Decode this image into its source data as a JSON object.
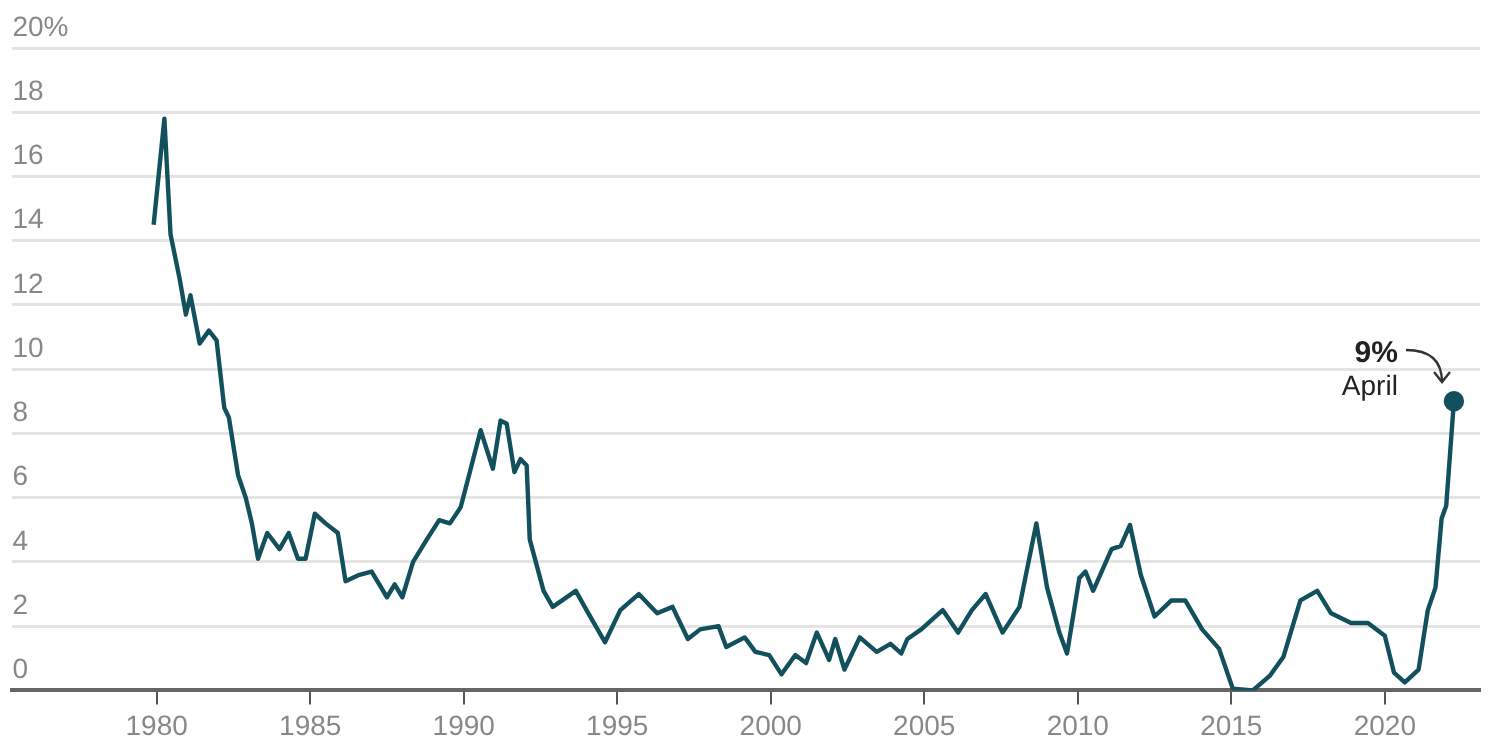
{
  "chart_data": {
    "type": "line",
    "x": [
      1979.9,
      1980.25,
      1980.45,
      1980.75,
      1980.95,
      1981.1,
      1981.4,
      1981.7,
      1981.95,
      1982.2,
      1982.35,
      1982.65,
      1982.9,
      1983.1,
      1983.3,
      1983.6,
      1984.0,
      1984.3,
      1984.6,
      1984.85,
      1985.15,
      1985.5,
      1985.9,
      1986.15,
      1986.6,
      1987.0,
      1987.5,
      1987.75,
      1988.0,
      1988.35,
      1988.8,
      1989.2,
      1989.55,
      1989.9,
      1990.2,
      1990.55,
      1990.95,
      1991.2,
      1991.4,
      1991.65,
      1991.85,
      1992.05,
      1992.15,
      1992.6,
      1992.9,
      1993.65,
      1994.0,
      1994.6,
      1995.1,
      1995.7,
      1996.3,
      1996.8,
      1997.3,
      1997.7,
      1998.3,
      1998.55,
      1999.15,
      1999.5,
      1999.95,
      2000.35,
      2000.8,
      2001.15,
      2001.5,
      2001.9,
      2002.1,
      2002.4,
      2002.9,
      2003.45,
      2003.9,
      2004.25,
      2004.45,
      2004.9,
      2005.6,
      2006.1,
      2006.55,
      2007.0,
      2007.55,
      2008.1,
      2008.65,
      2009.0,
      2009.4,
      2009.65,
      2010.05,
      2010.25,
      2010.5,
      2011.1,
      2011.4,
      2011.7,
      2012.05,
      2012.5,
      2013.05,
      2013.5,
      2014.05,
      2014.6,
      2015.05,
      2015.7,
      2016.25,
      2016.7,
      2017.25,
      2017.8,
      2018.25,
      2018.9,
      2019.45,
      2020.0,
      2020.3,
      2020.65,
      2021.1,
      2021.4,
      2021.65,
      2021.85,
      2022.0,
      2022.25
    ],
    "series": [
      {
        "color": "#12505e",
        "values": [
          14.5,
          17.8,
          14.2,
          12.8,
          11.7,
          12.3,
          10.8,
          11.2,
          10.9,
          8.8,
          8.5,
          6.7,
          6.0,
          5.2,
          4.1,
          4.9,
          4.4,
          4.9,
          4.1,
          4.1,
          5.5,
          5.2,
          4.9,
          3.4,
          3.6,
          3.7,
          2.9,
          3.3,
          2.9,
          4.0,
          4.7,
          5.3,
          5.2,
          5.7,
          6.8,
          8.1,
          6.9,
          8.4,
          8.3,
          6.8,
          7.2,
          7.0,
          4.7,
          3.1,
          2.6,
          3.1,
          2.5,
          1.5,
          2.5,
          3.0,
          2.4,
          2.6,
          1.6,
          1.9,
          2.0,
          1.35,
          1.65,
          1.2,
          1.1,
          0.5,
          1.1,
          0.85,
          1.8,
          0.95,
          1.6,
          0.65,
          1.65,
          1.2,
          1.45,
          1.15,
          1.6,
          1.9,
          2.5,
          1.8,
          2.5,
          3.0,
          1.8,
          2.6,
          5.2,
          3.2,
          1.8,
          1.15,
          3.5,
          3.7,
          3.1,
          4.4,
          4.5,
          5.15,
          3.6,
          2.3,
          2.8,
          2.8,
          1.9,
          1.3,
          0.05,
          0,
          0.45,
          1.05,
          2.8,
          3.1,
          2.4,
          2.1,
          2.1,
          1.7,
          0.55,
          0.25,
          0.65,
          2.5,
          3.2,
          5.35,
          5.75,
          9.0
        ]
      }
    ],
    "xlim": [
      1975.3,
      2023.1
    ],
    "xticks": [
      1980,
      1985,
      1990,
      1995,
      2000,
      2005,
      2010,
      2015,
      2020
    ],
    "ylim": [
      0,
      20
    ],
    "yticks": [
      0,
      2,
      4,
      6,
      8,
      10,
      12,
      14,
      16,
      18,
      {
        "value": 20,
        "label": "20%"
      }
    ],
    "grid": "y",
    "annotations": [
      {
        "text": "9%",
        "x": 2022.25,
        "y": 9.0
      },
      {
        "text": "April",
        "x": 2022.25,
        "y": 9.0
      }
    ]
  }
}
